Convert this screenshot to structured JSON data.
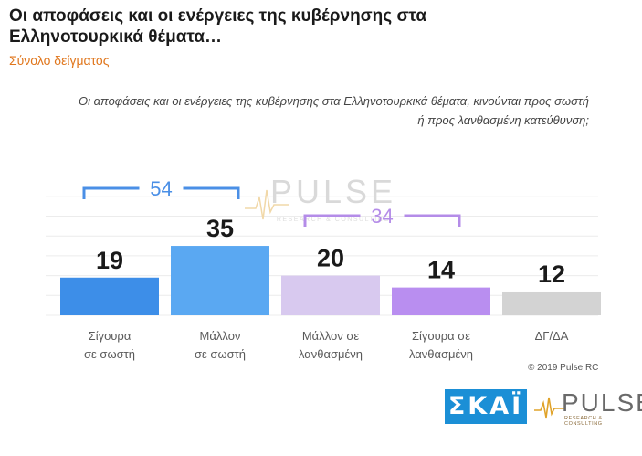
{
  "header": {
    "title": "Οι αποφάσεις και οι ενέργειες της κυβέρνησης στα Ελληνοτουρκικά θέματα…",
    "subtitle": "Σύνολο δείγματος",
    "question": "Οι αποφάσεις και οι ενέργειες της κυβέρνησης στα Ελληνοτουρκικά θέματα, κινούνται προς σωστή ή προς λανθασμένη κατεύθυνση;"
  },
  "chart_data": {
    "type": "bar",
    "title": "Οι αποφάσεις και οι ενέργειες της κυβέρνησης στα Ελληνοτουρκικά θέματα…",
    "xlabel": "",
    "ylabel": "",
    "ylim": [
      0,
      60
    ],
    "grid": true,
    "categories": [
      [
        "Σίγουρα",
        "σε σωστή"
      ],
      [
        "Μάλλον",
        "σε σωστή"
      ],
      [
        "Μάλλον σε",
        "λανθασμένη"
      ],
      [
        "Σίγουρα σε",
        "λανθασμένη"
      ],
      [
        "ΔΓ/ΔΑ"
      ]
    ],
    "values": [
      19,
      35,
      20,
      14,
      12
    ],
    "colors": [
      "#3d8ee8",
      "#5aa8f2",
      "#d8c9ef",
      "#b98ef0",
      "#d3d3d3"
    ],
    "groups": [
      {
        "label": "54",
        "from": 0,
        "to": 1,
        "color": "#4a8fe6"
      },
      {
        "label": "34",
        "from": 2,
        "to": 3,
        "color": "#b48ce8"
      }
    ]
  },
  "watermark": {
    "brand": "PULSE",
    "tagline": "RESEARCH & CONSULTING"
  },
  "footer": {
    "copyright": "© 2019 Pulse RC",
    "logo_left": "ΣΚΑΪ",
    "logo_right": "PULSE",
    "logo_right_tagline": "RESEARCH & CONSULTING"
  }
}
